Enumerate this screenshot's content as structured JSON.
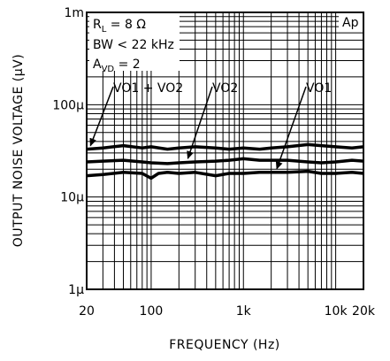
{
  "chart_data": {
    "type": "line",
    "xlabel": "FREQUENCY (Hz)",
    "ylabel": "OUTPUT NOISE VOLTAGE (μV)",
    "x_scale": "log",
    "y_scale": "log",
    "xlim": [
      20,
      20000
    ],
    "ylim": [
      1,
      1000
    ],
    "y_unit_value": "μV",
    "x_ticks": [
      {
        "value": 20,
        "label": "20"
      },
      {
        "value": 100,
        "label": "100"
      },
      {
        "value": 1000,
        "label": "1k"
      },
      {
        "value": 10000,
        "label": "10k"
      },
      {
        "value": 20000,
        "label": "20k"
      }
    ],
    "y_ticks": [
      {
        "value": 1,
        "label": "1μ"
      },
      {
        "value": 10,
        "label": "10μ"
      },
      {
        "value": 100,
        "label": "100μ"
      },
      {
        "value": 1000,
        "label": "1m"
      }
    ],
    "grid": true,
    "conditions": [
      {
        "id": "rl",
        "text": "RL = 8Ω"
      },
      {
        "id": "bw",
        "text": "BW < 22 kHz"
      },
      {
        "id": "avd",
        "text": "AVD = 2"
      }
    ],
    "brand": "Ap",
    "series": [
      {
        "name": "VO1 + VO2",
        "x": [
          20,
          30,
          50,
          80,
          100,
          150,
          200,
          300,
          500,
          700,
          1000,
          1500,
          2000,
          3000,
          5000,
          7000,
          10000,
          15000,
          20000
        ],
        "y": [
          33,
          34,
          36,
          34,
          35,
          33,
          34,
          35,
          34,
          33,
          34,
          33,
          34,
          35,
          37,
          36,
          35,
          34,
          35
        ]
      },
      {
        "name": "VO2",
        "x": [
          20,
          30,
          50,
          80,
          100,
          150,
          200,
          300,
          500,
          700,
          1000,
          1500,
          2000,
          3000,
          5000,
          7000,
          10000,
          15000,
          20000
        ],
        "y": [
          24,
          24.5,
          25,
          24,
          23.5,
          23,
          23.5,
          24,
          24.5,
          25,
          26,
          25,
          25,
          25,
          24,
          23.5,
          24,
          25,
          24.5
        ]
      },
      {
        "name": "VO1",
        "x": [
          20,
          30,
          50,
          80,
          100,
          120,
          150,
          200,
          300,
          500,
          700,
          1000,
          1500,
          2000,
          3000,
          5000,
          7000,
          10000,
          15000,
          20000
        ],
        "y": [
          17,
          17.5,
          18.5,
          18,
          16,
          18,
          18.5,
          18,
          18.5,
          17,
          18,
          18,
          18.5,
          18.5,
          18.5,
          19,
          18,
          18,
          18.5,
          18
        ]
      }
    ],
    "annotations": [
      {
        "series": "VO1 + VO2",
        "text": "VO1 + VO2",
        "target": [
          22,
          33
        ]
      },
      {
        "series": "VO2",
        "text": "VO2",
        "target": [
          250,
          24
        ]
      },
      {
        "series": "VO1",
        "text": "VO1",
        "target": [
          2300,
          18.5
        ]
      }
    ]
  }
}
